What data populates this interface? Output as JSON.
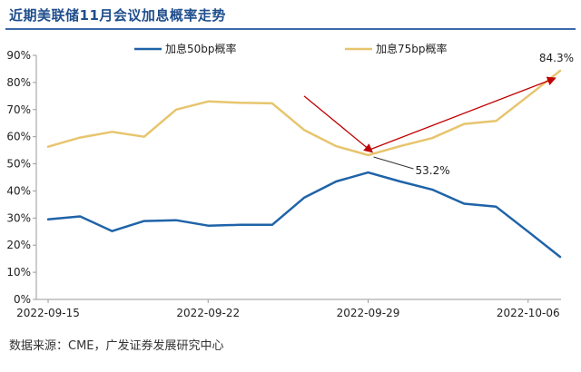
{
  "page": {
    "title": "近期美联储11月会议加息概率走势",
    "source": "数据来源：CME，广发证券发展研究中心"
  },
  "colors": {
    "series_50": "#1f63a8",
    "series_75": "#e7c56e",
    "arrow": "#c00000",
    "axis": "#9a9a9a",
    "title": "#1f4e8c"
  },
  "chart_data": {
    "type": "line",
    "title": "近期美联储11月会议加息概率走势",
    "xlabel": "",
    "ylabel": "",
    "x": [
      "2022-09-15",
      "2022-09-16",
      "2022-09-19",
      "2022-09-20",
      "2022-09-21",
      "2022-09-22",
      "2022-09-23",
      "2022-09-26",
      "2022-09-27",
      "2022-09-28",
      "2022-09-29",
      "2022-09-30",
      "2022-10-03",
      "2022-10-04",
      "2022-10-05",
      "2022-10-06",
      "2022-10-07"
    ],
    "xtick_labels": [
      "2022-09-15",
      "2022-09-22",
      "2022-09-29",
      "2022-10-06"
    ],
    "xtick_index": [
      0,
      5,
      10,
      15
    ],
    "ylim": [
      0,
      90
    ],
    "ytick_values": [
      0,
      10,
      20,
      30,
      40,
      50,
      60,
      70,
      80,
      90
    ],
    "ytick_labels": [
      "0%",
      "10%",
      "20%",
      "30%",
      "40%",
      "50%",
      "60%",
      "70%",
      "80%",
      "90%"
    ],
    "legend_position": "top-center",
    "series": [
      {
        "name": "加息50bp概率",
        "color_key": "series_50",
        "values": [
          29.5,
          30.6,
          25.2,
          28.9,
          29.2,
          27.2,
          27.5,
          27.5,
          37.5,
          43.5,
          46.8,
          43.5,
          40.5,
          35.3,
          34.2,
          25.0,
          15.7
        ]
      },
      {
        "name": "加息75bp概率",
        "color_key": "series_75",
        "values": [
          56.3,
          59.7,
          61.8,
          60.0,
          70.0,
          73.0,
          72.5,
          72.3,
          62.5,
          56.5,
          53.2,
          56.5,
          59.5,
          64.7,
          65.8,
          75.0,
          84.3
        ]
      }
    ],
    "annotations": [
      {
        "text": "53.2%",
        "series": 1,
        "point_index": 10
      },
      {
        "text": "84.3%",
        "series": 1,
        "point_index": 16
      }
    ],
    "arrows": [
      {
        "from_index": 8,
        "from_value": 75.0,
        "to_index": 10,
        "to_value": 54.5
      },
      {
        "from_index": 10,
        "from_value": 55.0,
        "to_index": 16,
        "to_value": 81.5
      }
    ]
  }
}
